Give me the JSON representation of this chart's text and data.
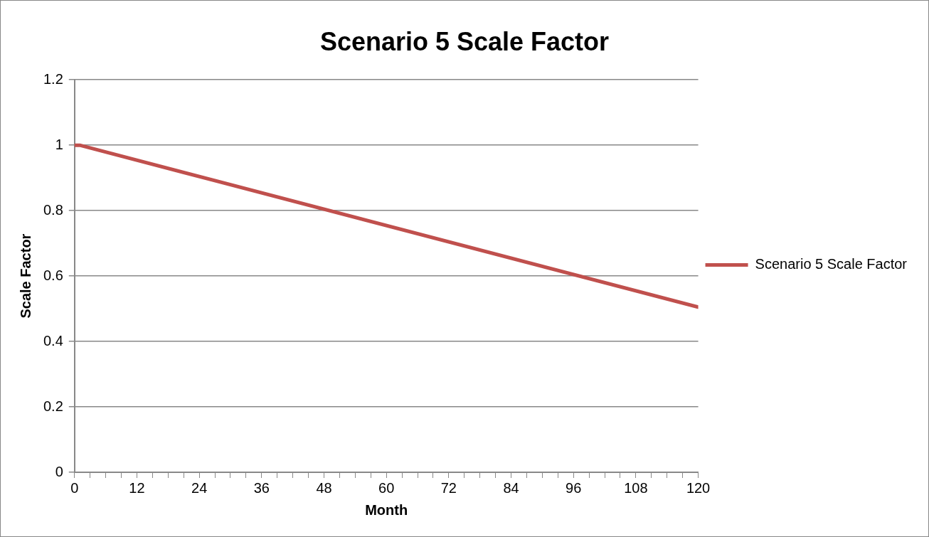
{
  "chart_data": {
    "type": "line",
    "title": "Scenario 5 Scale Factor",
    "xlabel": "Month",
    "ylabel": "Scale Factor",
    "x": [
      0,
      1,
      120
    ],
    "series": [
      {
        "name": "Scenario 5 Scale Factor",
        "color": "#c0504d",
        "values": [
          1,
          1,
          0.505
        ]
      }
    ],
    "xlim": [
      0,
      120
    ],
    "xticks": [
      0,
      {
        "value": 3,
        "label": null
      },
      {
        "value": 6,
        "label": null
      },
      {
        "value": 9,
        "label": null
      },
      12,
      {
        "value": 15,
        "label": null
      },
      {
        "value": 18,
        "label": null
      },
      {
        "value": 21,
        "label": null
      },
      24,
      {
        "value": 27,
        "label": null
      },
      {
        "value": 30,
        "label": null
      },
      {
        "value": 33,
        "label": null
      },
      36,
      {
        "value": 39,
        "label": null
      },
      {
        "value": 42,
        "label": null
      },
      {
        "value": 45,
        "label": null
      },
      48,
      {
        "value": 51,
        "label": null
      },
      {
        "value": 54,
        "label": null
      },
      {
        "value": 57,
        "label": null
      },
      60,
      {
        "value": 63,
        "label": null
      },
      {
        "value": 66,
        "label": null
      },
      {
        "value": 69,
        "label": null
      },
      72,
      {
        "value": 75,
        "label": null
      },
      {
        "value": 78,
        "label": null
      },
      {
        "value": 81,
        "label": null
      },
      84,
      {
        "value": 87,
        "label": null
      },
      {
        "value": 90,
        "label": null
      },
      {
        "value": 93,
        "label": null
      },
      96,
      {
        "value": 99,
        "label": null
      },
      {
        "value": 102,
        "label": null
      },
      {
        "value": 105,
        "label": null
      },
      108,
      {
        "value": 111,
        "label": null
      },
      {
        "value": 114,
        "label": null
      },
      {
        "value": 117,
        "label": null
      },
      120
    ],
    "ylim": [
      0,
      1.2
    ],
    "yticks": [
      0,
      0.2,
      0.4,
      0.6,
      0.8,
      1,
      1.2
    ],
    "grid": "y",
    "legend": "right",
    "marker": "none",
    "line_style": "solid"
  }
}
